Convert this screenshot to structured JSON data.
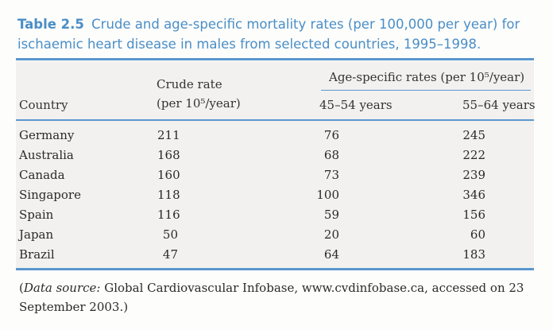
{
  "caption": {
    "label": "Table 2.5",
    "text": "Crude and age-specific mortality rates (per 100,000 per year) for ischaemic heart disease in males from selected countries, 1995–1998."
  },
  "headers": {
    "country": "Country",
    "crude_line1": "Crude rate",
    "crude_line2": "(per 10⁵/year)",
    "age_group": "Age-specific rates (per 10⁵/year)",
    "age_45_54": "45–54 years",
    "age_55_64": "55–64 years"
  },
  "rows": [
    {
      "country": "Germany",
      "crude": "211",
      "age_45_54": "76",
      "age_55_64": "245"
    },
    {
      "country": "Australia",
      "crude": "168",
      "age_45_54": "68",
      "age_55_64": "222"
    },
    {
      "country": "Canada",
      "crude": "160",
      "age_45_54": "73",
      "age_55_64": "239"
    },
    {
      "country": "Singapore",
      "crude": "118",
      "age_45_54": "100",
      "age_55_64": "346"
    },
    {
      "country": "Spain",
      "crude": "116",
      "age_45_54": "59",
      "age_55_64": "156"
    },
    {
      "country": "Japan",
      "crude": "50",
      "age_45_54": "20",
      "age_55_64": "60"
    },
    {
      "country": "Brazil",
      "crude": "47",
      "age_45_54": "64",
      "age_55_64": "183"
    }
  ],
  "source": {
    "label": "Data source:",
    "text": "Global Cardiovascular Infobase, www.cvdinfobase.ca, accessed on 23 September 2003.)"
  },
  "colors": {
    "accent": "#4a8ec6",
    "rule": "#5b96cf",
    "shade": "#f2f1ef"
  }
}
